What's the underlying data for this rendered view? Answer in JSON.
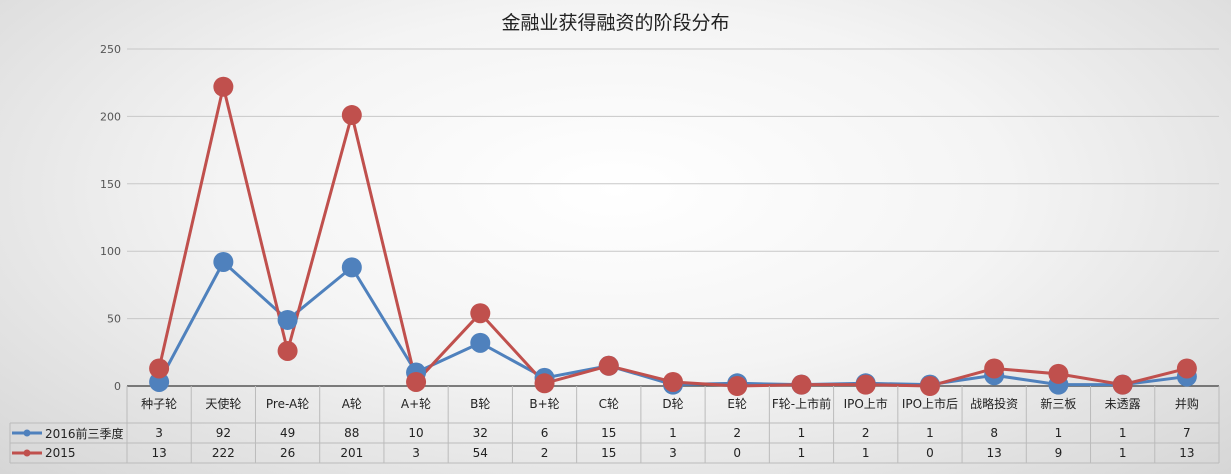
{
  "chart_data": {
    "type": "line",
    "title": "金融业获得融资的阶段分布",
    "categories": [
      "种子轮",
      "天使轮",
      "Pre-A轮",
      "A轮",
      "A+轮",
      "B轮",
      "B+轮",
      "C轮",
      "D轮",
      "E轮",
      "F轮-上市前",
      "IPO上市",
      "IPO上市后",
      "战略投资",
      "新三板",
      "未透露",
      "并购"
    ],
    "series": [
      {
        "name": "2016前三季度",
        "color": "#4f81bd",
        "values": [
          3,
          92,
          49,
          88,
          10,
          32,
          6,
          15,
          1,
          2,
          1,
          2,
          1,
          8,
          1,
          1,
          7
        ]
      },
      {
        "name": "2015",
        "color": "#c0504d",
        "values": [
          13,
          222,
          26,
          201,
          3,
          54,
          2,
          15,
          3,
          0,
          1,
          1,
          0,
          13,
          9,
          1,
          13
        ]
      }
    ],
    "ylim": [
      0,
      250
    ],
    "yticks": [
      "0",
      "50",
      "100",
      "150",
      "200",
      "250"
    ],
    "grid": true,
    "legend": "data-table",
    "xlabel": "",
    "ylabel": ""
  }
}
